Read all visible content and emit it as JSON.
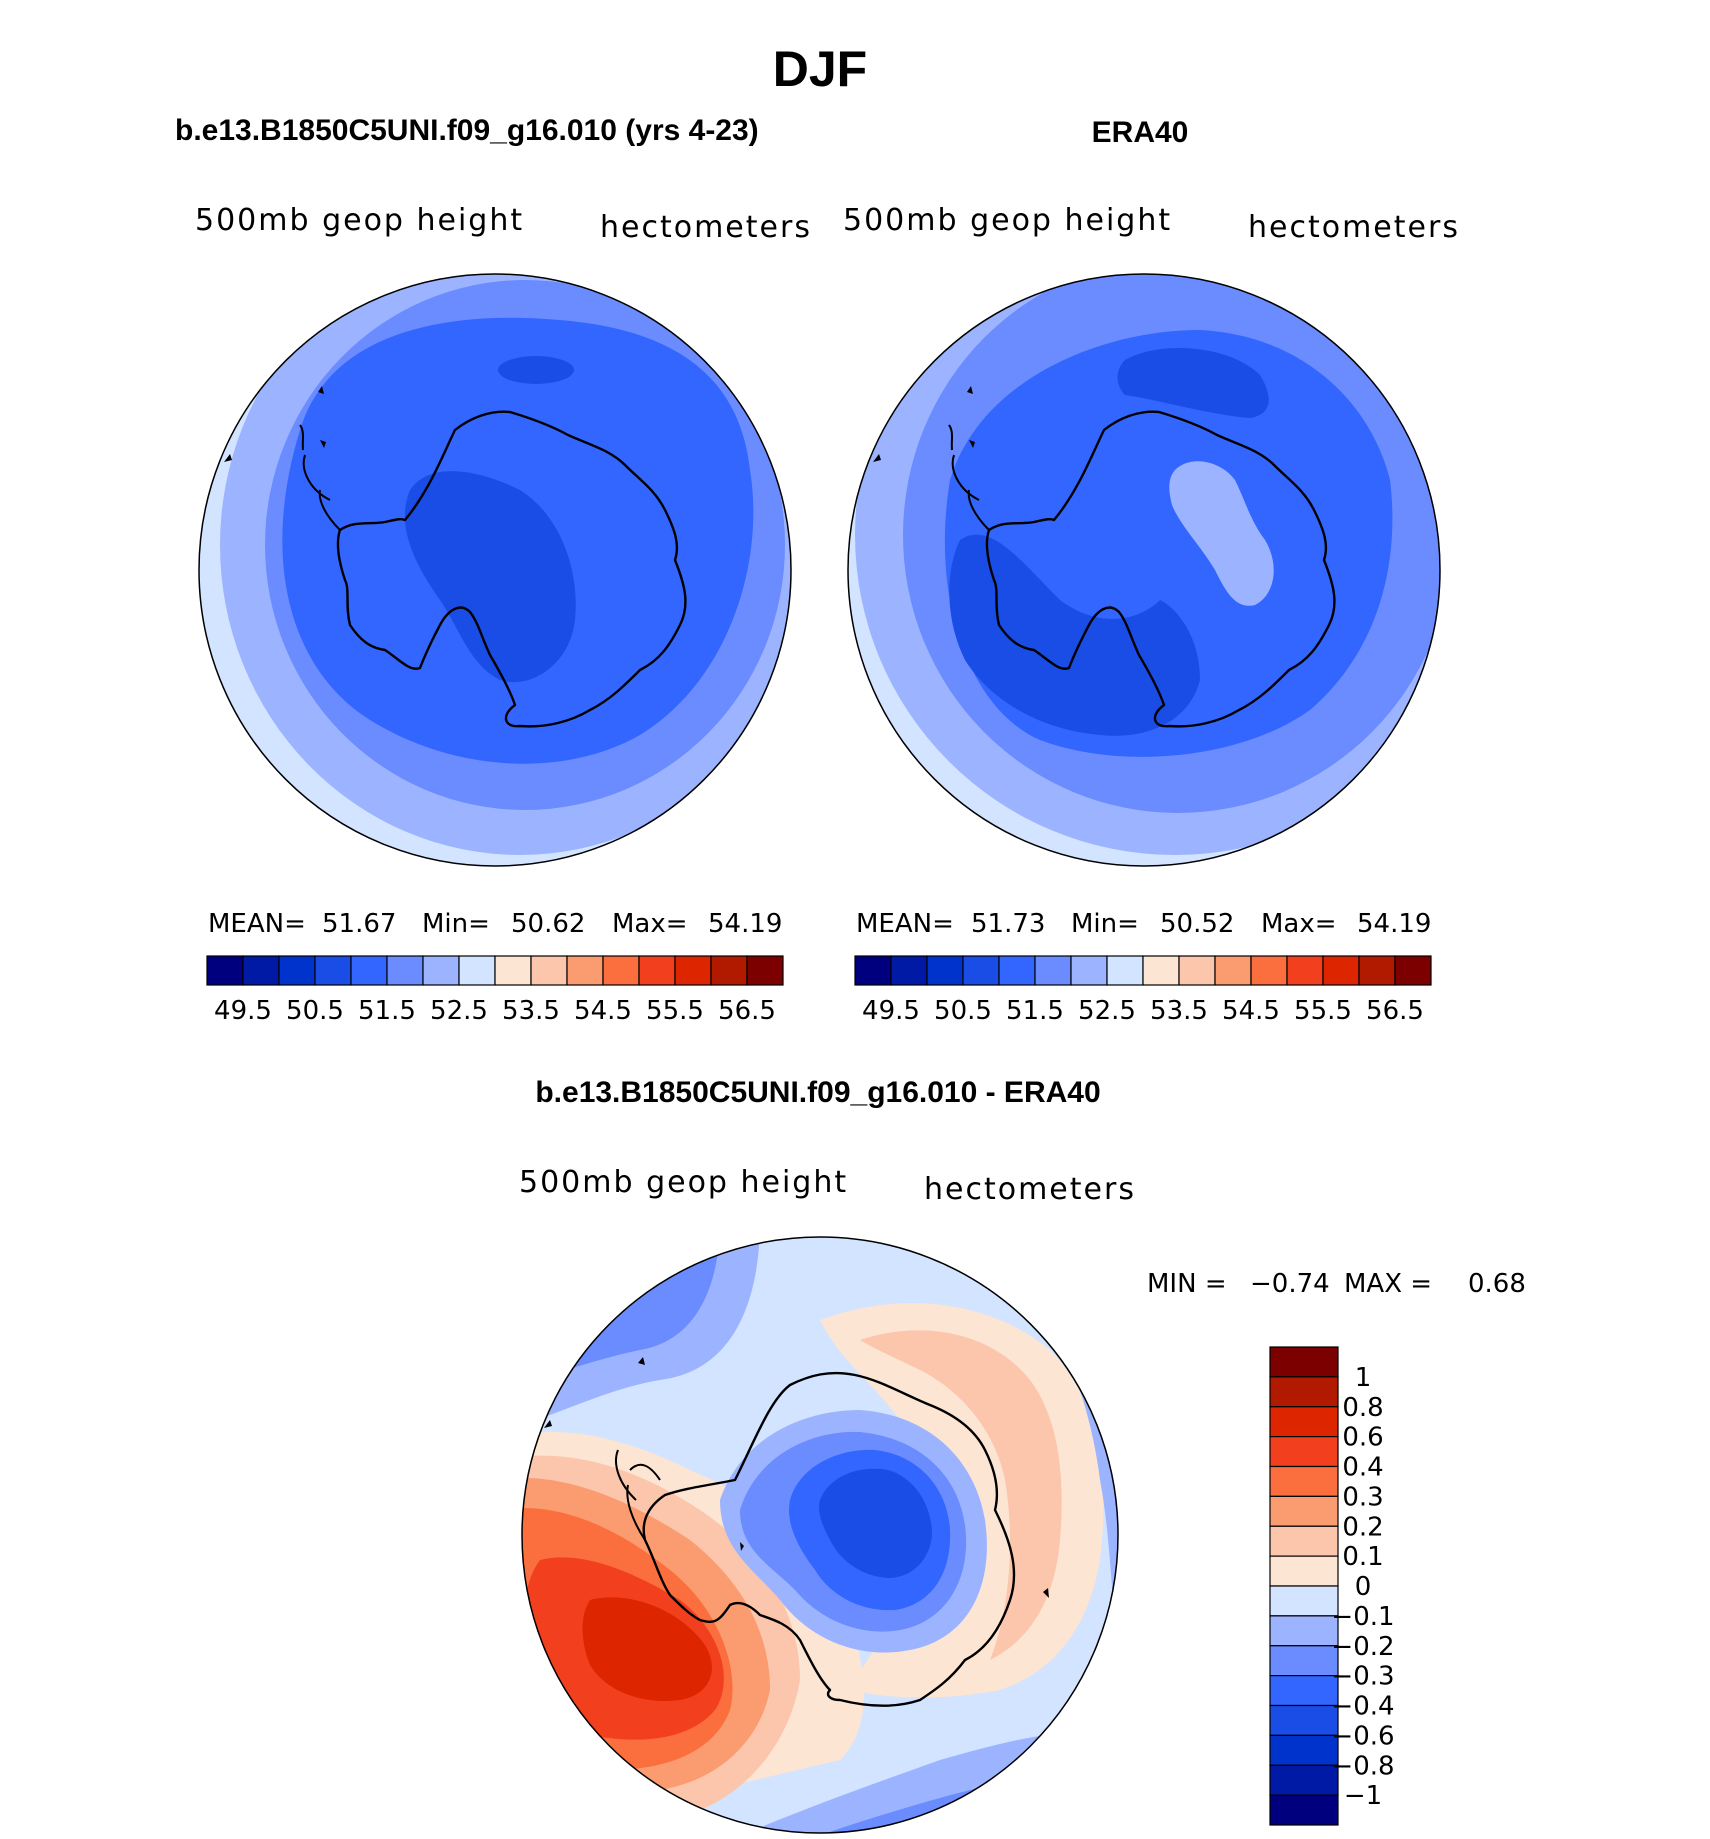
{
  "title": "DJF",
  "colors": {
    "abs_palette": [
      "#00007f",
      "#001aa6",
      "#0033cc",
      "#1a4de6",
      "#3366ff",
      "#6a8cff",
      "#9cb4ff",
      "#d2e4ff",
      "#fde5d3",
      "#fcc6ad",
      "#fb9c70",
      "#fb6e3d",
      "#f2401f",
      "#dd2500",
      "#b21a00",
      "#7d0000"
    ],
    "diff_palette": [
      "#00007f",
      "#001aa6",
      "#0033cc",
      "#1a4de6",
      "#3366ff",
      "#6a8cff",
      "#9cb4ff",
      "#d2e4ff",
      "#fde5d3",
      "#fcc6ad",
      "#fb9c70",
      "#fb6e3d",
      "#f2401f",
      "#dd2500",
      "#b21a00",
      "#7d0000"
    ],
    "coast": "#000000"
  },
  "chart_data": [
    {
      "type": "heatmap",
      "id": "model",
      "title": "b.e13.B1850C5UNI.f09_g16.010 (yrs 4-23)",
      "left_label": "500mb geop height",
      "right_label": "hectometers",
      "stats": {
        "mean_label": "MEAN=",
        "mean": "51.67",
        "min_label": "Min=",
        "min": "50.62",
        "max_label": "Max=",
        "max": "54.19"
      },
      "field_levels": [
        0,
        1,
        2,
        3,
        4,
        5,
        6,
        7,
        8,
        9
      ],
      "colorbar_ticks": [
        "49.5",
        "50.5",
        "51.5",
        "52.5",
        "53.5",
        "54.5",
        "55.5",
        "56.5"
      ],
      "units": "hectometers"
    },
    {
      "type": "heatmap",
      "id": "obs",
      "title": "ERA40",
      "left_label": "500mb geop height",
      "right_label": "hectometers",
      "stats": {
        "mean_label": "MEAN=",
        "mean": "51.73",
        "min_label": "Min=",
        "min": "50.52",
        "max_label": "Max=",
        "max": "54.19"
      },
      "colorbar_ticks": [
        "49.5",
        "50.5",
        "51.5",
        "52.5",
        "53.5",
        "54.5",
        "55.5",
        "56.5"
      ],
      "units": "hectometers"
    },
    {
      "type": "heatmap",
      "id": "diff",
      "title": "b.e13.B1850C5UNI.f09_g16.010 - ERA40",
      "left_label": "500mb geop height",
      "right_label": "hectometers",
      "stats": {
        "min_label": "MIN =",
        "min": "−0.74",
        "max_label": "MAX =",
        "max": "0.68"
      },
      "colorbar_ticks": [
        "1",
        "0.8",
        "0.6",
        "0.4",
        "0.3",
        "0.2",
        "0.1",
        "0",
        "−0.1",
        "−0.2",
        "−0.3",
        "−0.4",
        "−0.6",
        "−0.8",
        "−1"
      ],
      "units": "hectometers"
    }
  ]
}
